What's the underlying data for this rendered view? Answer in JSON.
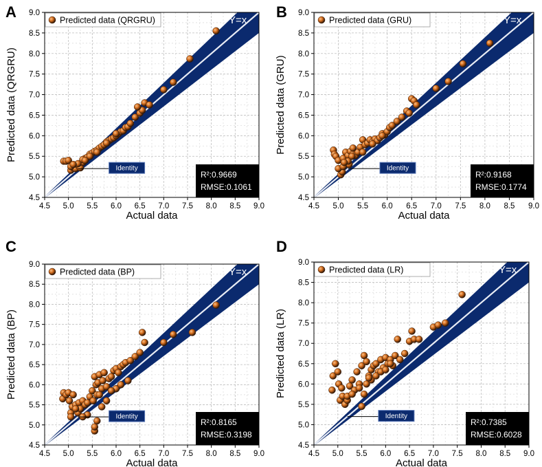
{
  "chart_data": [
    {
      "type": "scatter",
      "panel_label": "A",
      "legend": "Predicted data (QRGRU)",
      "xlabel": "Actual data",
      "ylabel": "Predicted data (QRGRU)",
      "xlim": [
        4.5,
        9.0
      ],
      "ylim": [
        4.5,
        9.0
      ],
      "xticks": [
        "4.5",
        "5.0",
        "5.5",
        "6.0",
        "6.5",
        "7.0",
        "7.5",
        "8.0",
        "8.5",
        "9.0"
      ],
      "yticks": [
        "4.5",
        "5.0",
        "5.5",
        "6.0",
        "6.5",
        "7.0",
        "7.5",
        "8.0",
        "8.5",
        "9.0"
      ],
      "reference_line": "Y=x",
      "identity_label": "Identity",
      "r2": "R²:0.9669",
      "rmse": "RMSE:0.1061",
      "band_halfwidth": [
        0.02,
        0.5
      ],
      "points": {
        "x": [
          4.9,
          4.95,
          5.0,
          5.05,
          5.1,
          5.15,
          5.2,
          5.25,
          5.3,
          5.35,
          5.4,
          5.45,
          5.5,
          5.55,
          5.6,
          5.65,
          5.7,
          5.75,
          5.8,
          5.85,
          5.9,
          5.95,
          6.0,
          6.05,
          6.1,
          6.15,
          6.2,
          6.25,
          6.3,
          6.4,
          6.5,
          6.55,
          6.6,
          6.7,
          7.0,
          7.2,
          7.55,
          8.1,
          5.05,
          5.2,
          5.3,
          5.45,
          5.6,
          5.8,
          6.0,
          6.45,
          5.1,
          5.35
        ],
        "y": [
          5.38,
          5.38,
          5.4,
          5.16,
          5.22,
          5.2,
          5.28,
          5.22,
          5.35,
          5.45,
          5.48,
          5.55,
          5.58,
          5.62,
          5.65,
          5.7,
          5.74,
          5.78,
          5.85,
          5.88,
          5.92,
          5.95,
          6.0,
          6.05,
          6.1,
          6.12,
          6.2,
          6.22,
          6.3,
          6.45,
          6.55,
          6.62,
          6.8,
          6.75,
          7.12,
          7.3,
          7.87,
          8.55,
          5.25,
          5.32,
          5.42,
          5.5,
          5.6,
          5.82,
          6.05,
          6.7,
          5.3,
          5.4
        ]
      }
    },
    {
      "type": "scatter",
      "panel_label": "B",
      "legend": "Predicted data (GRU)",
      "xlabel": "Actual data",
      "ylabel": "Predicted data (GRU)",
      "xlim": [
        4.5,
        9.0
      ],
      "ylim": [
        4.5,
        9.0
      ],
      "xticks": [
        "4.5",
        "5.0",
        "5.5",
        "6.0",
        "6.5",
        "7.0",
        "7.5",
        "8.0",
        "8.5",
        "9.0"
      ],
      "yticks": [
        "4.5",
        "5.0",
        "5.5",
        "6.0",
        "6.5",
        "7.0",
        "7.5",
        "8.0",
        "8.5",
        "9.0"
      ],
      "reference_line": "Y=x",
      "identity_label": "Identity",
      "r2": "R²:0.9168",
      "rmse": "RMSE:0.1774",
      "band_halfwidth": [
        0.02,
        0.5
      ],
      "points": {
        "x": [
          4.9,
          4.92,
          4.95,
          5.0,
          5.05,
          5.08,
          5.1,
          5.15,
          5.2,
          5.22,
          5.25,
          5.3,
          5.35,
          5.4,
          5.45,
          5.5,
          5.55,
          5.6,
          5.65,
          5.7,
          5.75,
          5.8,
          5.85,
          5.9,
          5.95,
          6.0,
          6.05,
          6.1,
          6.2,
          6.3,
          6.4,
          6.5,
          6.55,
          6.6,
          7.0,
          7.25,
          7.55,
          8.1,
          5.0,
          5.1,
          5.2,
          5.3,
          5.5,
          5.7,
          5.9,
          6.45,
          5.12,
          5.28
        ],
        "y": [
          5.65,
          5.55,
          5.5,
          5.4,
          5.05,
          5.12,
          5.45,
          5.6,
          5.52,
          5.3,
          5.62,
          5.55,
          5.52,
          5.6,
          5.72,
          5.9,
          5.78,
          5.82,
          5.9,
          5.85,
          5.92,
          5.88,
          5.95,
          6.05,
          6.02,
          6.1,
          6.2,
          6.25,
          6.35,
          6.45,
          6.6,
          6.9,
          6.85,
          6.75,
          7.15,
          7.32,
          7.75,
          8.25,
          5.2,
          5.25,
          5.38,
          5.7,
          5.6,
          5.8,
          6.0,
          6.55,
          5.35,
          5.5
        ]
      }
    },
    {
      "type": "scatter",
      "panel_label": "C",
      "legend": "Predicted data (BP)",
      "xlabel": "Actual data",
      "ylabel": "Predicted data (BP)",
      "xlim": [
        4.5,
        9.0
      ],
      "ylim": [
        4.5,
        9.0
      ],
      "xticks": [
        "4.5",
        "5.0",
        "5.5",
        "6.0",
        "6.5",
        "7.0",
        "7.5",
        "8.0",
        "8.5",
        "9.0"
      ],
      "yticks": [
        "4.5",
        "5.0",
        "5.5",
        "6.0",
        "6.5",
        "7.0",
        "7.5",
        "8.0",
        "8.5",
        "9.0"
      ],
      "reference_line": "Y=x",
      "identity_label": "Identity",
      "r2": "R²:0.8165",
      "rmse": "RMSE:0.3198",
      "band_halfwidth": [
        0.02,
        0.5
      ],
      "points": {
        "x": [
          4.88,
          4.9,
          4.95,
          5.0,
          5.02,
          5.05,
          5.08,
          5.1,
          5.15,
          5.2,
          5.22,
          5.25,
          5.3,
          5.35,
          5.4,
          5.45,
          5.5,
          5.52,
          5.55,
          5.58,
          5.6,
          5.62,
          5.65,
          5.7,
          5.72,
          5.75,
          5.8,
          5.85,
          5.9,
          5.95,
          6.0,
          6.05,
          6.1,
          6.15,
          6.2,
          6.3,
          6.4,
          6.5,
          6.55,
          6.6,
          7.0,
          7.2,
          7.6,
          8.1,
          5.55,
          5.55,
          5.6,
          5.7,
          5.8,
          6.0,
          6.25,
          5.4,
          5.3,
          5.05,
          5.15,
          5.65,
          5.9,
          6.1
        ],
        "y": [
          5.65,
          5.8,
          5.75,
          5.8,
          5.6,
          5.3,
          5.45,
          5.75,
          5.5,
          5.3,
          5.55,
          5.4,
          5.6,
          5.5,
          5.55,
          5.7,
          5.85,
          5.6,
          6.2,
          6.0,
          5.75,
          6.05,
          6.25,
          5.9,
          6.1,
          6.3,
          5.95,
          6.15,
          6.2,
          6.35,
          6.4,
          6.3,
          6.45,
          6.5,
          6.55,
          6.6,
          6.7,
          6.8,
          7.3,
          7.05,
          7.05,
          7.25,
          7.3,
          7.98,
          4.85,
          4.95,
          5.1,
          5.45,
          5.6,
          5.9,
          6.1,
          5.25,
          5.2,
          5.2,
          5.4,
          5.75,
          5.85,
          6.0
        ]
      }
    },
    {
      "type": "scatter",
      "panel_label": "D",
      "legend": "Predicted data (LR)",
      "xlabel": "Actual data",
      "ylabel": "Predicted data (LR)",
      "xlim": [
        4.5,
        9.0
      ],
      "ylim": [
        4.5,
        9.0
      ],
      "xticks": [
        "4.5",
        "5.0",
        "5.5",
        "6.0",
        "6.5",
        "7.0",
        "7.5",
        "8.0",
        "8.5",
        "9.0"
      ],
      "yticks": [
        "4.5",
        "5.0",
        "5.5",
        "6.0",
        "6.5",
        "7.0",
        "7.5",
        "8.0",
        "8.5",
        "9.0"
      ],
      "reference_line": "Y=x",
      "identity_label": "Identity",
      "r2": "R²:0.7385",
      "rmse": "RMSE:0.6028",
      "band_halfwidth": [
        0.02,
        0.5
      ],
      "points": {
        "x": [
          4.88,
          4.9,
          4.95,
          5.0,
          5.02,
          5.05,
          5.08,
          5.1,
          5.15,
          5.2,
          5.25,
          5.3,
          5.35,
          5.4,
          5.45,
          5.5,
          5.55,
          5.6,
          5.65,
          5.7,
          5.75,
          5.8,
          5.85,
          5.9,
          5.95,
          6.0,
          6.05,
          6.1,
          6.15,
          6.2,
          6.25,
          6.3,
          6.4,
          6.5,
          6.55,
          6.6,
          6.7,
          7.0,
          7.1,
          7.25,
          7.6,
          5.5,
          5.55,
          5.6,
          5.7,
          5.8,
          5.9,
          6.0,
          5.2,
          5.3,
          5.45,
          5.65,
          6.1
        ],
        "y": [
          5.85,
          6.2,
          6.5,
          6.3,
          6.0,
          5.6,
          5.9,
          5.7,
          5.5,
          5.6,
          5.95,
          6.1,
          5.85,
          6.3,
          6.0,
          6.45,
          6.7,
          6.55,
          6.2,
          6.35,
          6.45,
          6.5,
          6.3,
          6.6,
          6.4,
          6.65,
          6.5,
          6.6,
          6.45,
          6.7,
          7.1,
          6.6,
          6.75,
          7.05,
          7.3,
          7.1,
          7.1,
          7.4,
          7.45,
          7.5,
          8.2,
          5.45,
          5.75,
          6.0,
          6.1,
          6.2,
          6.3,
          6.35,
          5.7,
          5.75,
          5.9,
          6.15,
          6.5
        ]
      }
    }
  ]
}
